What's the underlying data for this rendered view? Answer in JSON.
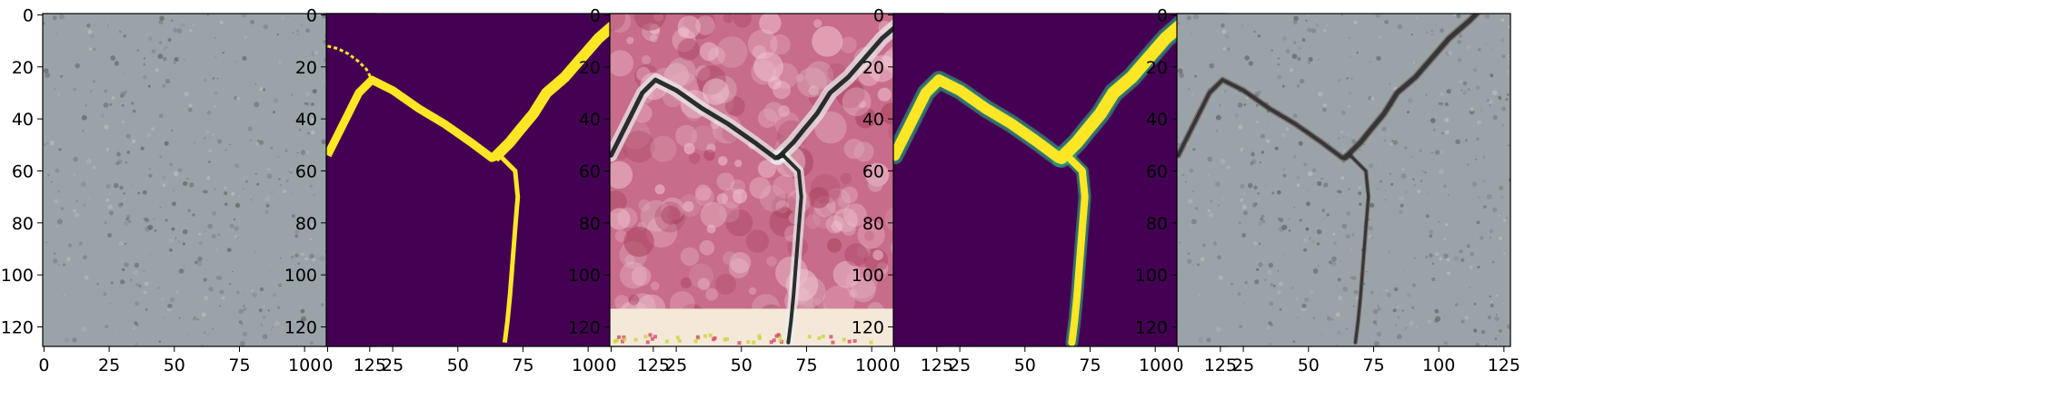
{
  "figure": {
    "background": "#ffffff",
    "panels": [
      {
        "name": "panel-concrete-input",
        "content": "photo-uncracked-concrete",
        "xticks": [
          "0",
          "25",
          "50",
          "75",
          "100",
          "125"
        ],
        "yticks": [
          "0",
          "20",
          "40",
          "60",
          "80",
          "100",
          "120"
        ],
        "xlim": [
          0,
          127
        ],
        "ylim": [
          127,
          0
        ]
      },
      {
        "name": "panel-crack-mask",
        "content": "binary-mask-viridis",
        "xticks": [
          "0",
          "25",
          "50",
          "75",
          "100",
          "125"
        ],
        "yticks": [
          "0",
          "20",
          "40",
          "60",
          "80",
          "100",
          "120"
        ],
        "xlim": [
          0,
          127
        ],
        "ylim": [
          127,
          0
        ]
      },
      {
        "name": "panel-generated-crack",
        "content": "synthetic-crack-texture",
        "xticks": [
          "0",
          "25",
          "50",
          "75",
          "100",
          "125"
        ],
        "yticks": [
          "0",
          "20",
          "40",
          "60",
          "80",
          "100",
          "120"
        ],
        "xlim": [
          0,
          127
        ],
        "ylim": [
          127,
          0
        ]
      },
      {
        "name": "panel-soft-mask",
        "content": "soft-mask-viridis",
        "xticks": [
          "0",
          "25",
          "50",
          "75",
          "100",
          "125"
        ],
        "yticks": [
          "0",
          "20",
          "40",
          "60",
          "80",
          "100",
          "120"
        ],
        "xlim": [
          0,
          127
        ],
        "ylim": [
          127,
          0
        ]
      },
      {
        "name": "panel-composited-result",
        "content": "concrete-with-crack",
        "xticks": [
          "0",
          "25",
          "50",
          "75",
          "100",
          "125"
        ],
        "yticks": [
          "0",
          "20",
          "40",
          "60",
          "80",
          "100",
          "120"
        ],
        "xlim": [
          0,
          127
        ],
        "ylim": [
          127,
          0
        ]
      }
    ],
    "colors": {
      "viridis_dark": "#440154",
      "viridis_yellow": "#fde725",
      "concrete": "#9aa3a8",
      "concrete_dark": "#5f666b",
      "crack_dark": "#2f3433",
      "pink_texture": "#c86c8b",
      "pink_light": "#efc3cf"
    }
  }
}
